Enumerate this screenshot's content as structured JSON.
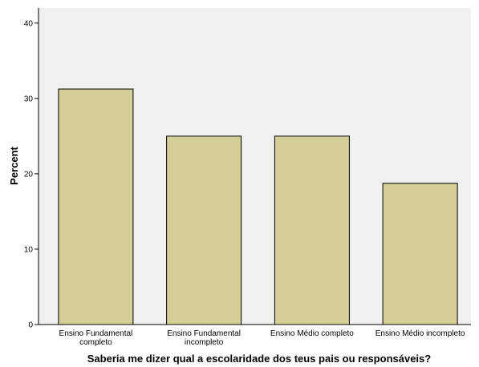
{
  "chart_data": {
    "type": "bar",
    "title": "",
    "xlabel": "Saberia me dizer qual a escolaridade dos teus pais ou responsáveis?",
    "ylabel": "Percent",
    "ylim": [
      0,
      42
    ],
    "yticks": [
      0,
      10,
      20,
      30,
      40
    ],
    "categories": [
      [
        "Ensino Fundamental",
        "completo"
      ],
      [
        "Ensino Fundamental",
        "incompleto"
      ],
      [
        "Ensino Médio completo"
      ],
      [
        "Ensino Médio incompleto"
      ]
    ],
    "values": [
      31.25,
      25.0,
      25.0,
      18.75
    ],
    "grid": false,
    "colors": {
      "bar_fill": "#d4cf98",
      "bar_stroke": "#000000",
      "plot_background": "#f0f0f0",
      "axis": "#000000"
    }
  }
}
